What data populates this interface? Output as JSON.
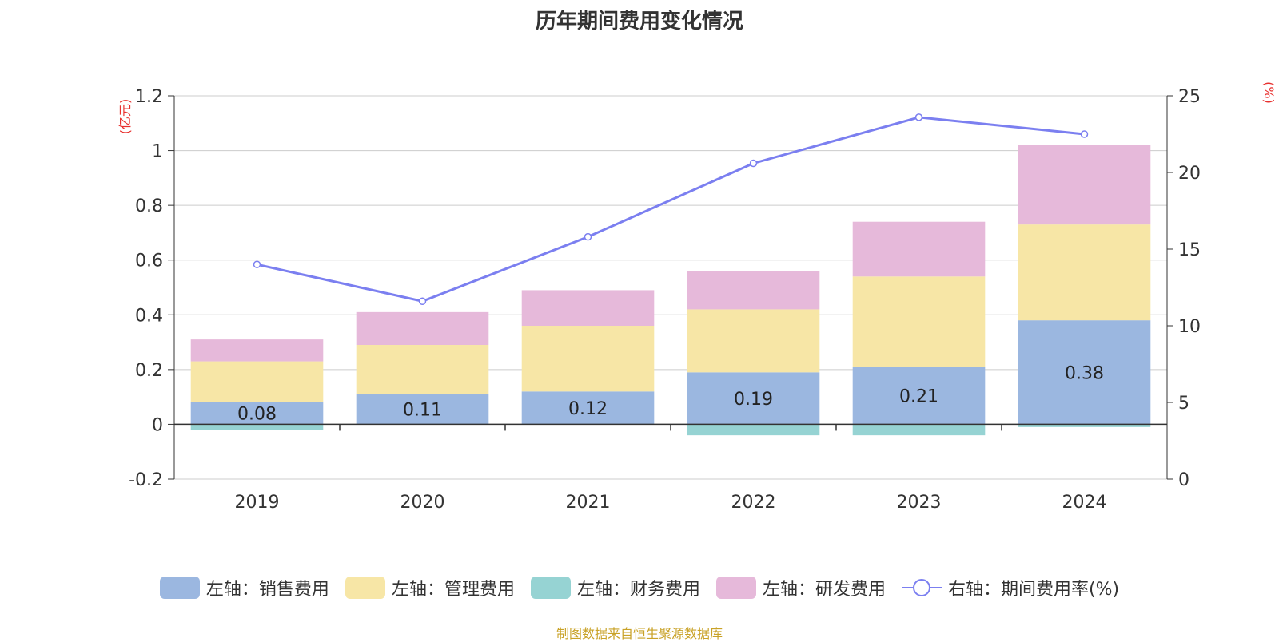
{
  "title": "历年期间费用变化情况",
  "left_axis_unit": "(亿元)",
  "right_axis_unit": "(%)",
  "source": "制图数据来自恒生聚源数据库",
  "legend": [
    {
      "label": "左轴：销售费用",
      "color": "#9bb7e0",
      "type": "bar"
    },
    {
      "label": "左轴：管理费用",
      "color": "#f7e6a6",
      "type": "bar"
    },
    {
      "label": "左轴：财务费用",
      "color": "#96d3d3",
      "type": "bar"
    },
    {
      "label": "左轴：研发费用",
      "color": "#e6b9da",
      "type": "bar"
    },
    {
      "label": "右轴：期间费用率(%)",
      "color": "#7b7ff0",
      "type": "line"
    }
  ],
  "chart_data": {
    "type": "bar",
    "stacked": true,
    "categories": [
      "2019",
      "2020",
      "2021",
      "2022",
      "2023",
      "2024"
    ],
    "series": [
      {
        "name": "左轴：销售费用",
        "axis": "left",
        "color": "#9bb7e0",
        "values": [
          0.08,
          0.11,
          0.12,
          0.19,
          0.21,
          0.38
        ],
        "labels": [
          "0.08",
          "0.11",
          "0.12",
          "0.19",
          "0.21",
          "0.38"
        ]
      },
      {
        "name": "左轴：管理费用",
        "axis": "left",
        "color": "#f7e6a6",
        "values": [
          0.15,
          0.18,
          0.24,
          0.23,
          0.33,
          0.35
        ]
      },
      {
        "name": "左轴：财务费用",
        "axis": "left",
        "color": "#96d3d3",
        "values": [
          -0.02,
          0.0,
          0.0,
          -0.04,
          -0.04,
          -0.01
        ]
      },
      {
        "name": "左轴：研发费用",
        "axis": "left",
        "color": "#e6b9da",
        "values": [
          0.08,
          0.12,
          0.13,
          0.14,
          0.2,
          0.29
        ]
      },
      {
        "name": "右轴：期间费用率(%)",
        "axis": "right",
        "type": "line",
        "color": "#7b7ff0",
        "values": [
          14.0,
          11.6,
          15.8,
          20.6,
          23.6,
          22.5
        ]
      }
    ],
    "left_axis": {
      "ylim": [
        -0.2,
        1.2
      ],
      "ticks": [
        "1.2",
        "1",
        "0.8",
        "0.6",
        "0.4",
        "0.2",
        "0",
        "-0.2"
      ],
      "tick_values": [
        1.2,
        1.0,
        0.8,
        0.6,
        0.4,
        0.2,
        0,
        -0.2
      ]
    },
    "right_axis": {
      "ylim": [
        0,
        25
      ],
      "ticks": [
        "25",
        "20",
        "15",
        "10",
        "5",
        "0"
      ],
      "tick_values": [
        25,
        20,
        15,
        10,
        5,
        0
      ]
    },
    "grid": true,
    "legend_position": "bottom"
  }
}
